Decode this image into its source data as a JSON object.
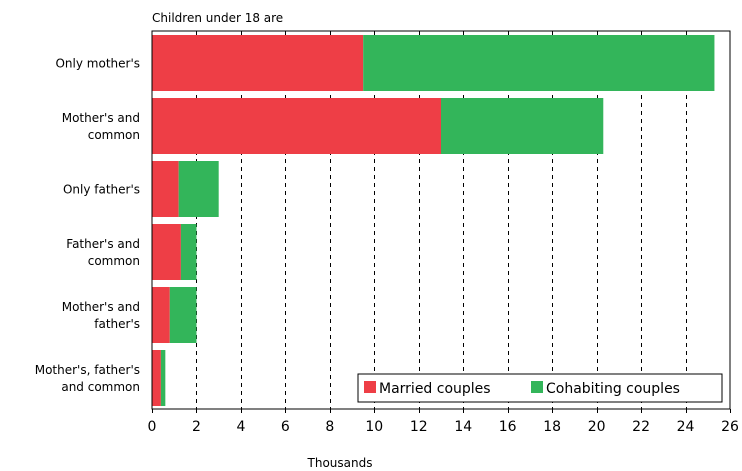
{
  "chart_data": {
    "type": "bar",
    "orientation": "horizontal",
    "stacked": true,
    "title": "Children under 18 are",
    "xlabel": "Thousands",
    "ylabel": "",
    "xlim": [
      0,
      26
    ],
    "xticks": [
      0,
      2,
      4,
      6,
      8,
      10,
      12,
      14,
      16,
      18,
      20,
      22,
      24,
      26
    ],
    "grid": "vertical dashed",
    "legend_position": "bottom-right",
    "categories": [
      [
        "Only mother's"
      ],
      [
        "Mother's and",
        "common"
      ],
      [
        "Only father's"
      ],
      [
        "Father's and",
        "common"
      ],
      [
        "Mother's and",
        "father's"
      ],
      [
        "Mother's, father's",
        "and common"
      ]
    ],
    "series": [
      {
        "name": "Married couples",
        "color": "#ee3e46",
        "values": [
          9.5,
          13.0,
          1.2,
          1.3,
          0.8,
          0.4
        ]
      },
      {
        "name": "Cohabiting couples",
        "color": "#33b55a",
        "values": [
          15.8,
          7.3,
          1.8,
          0.7,
          1.2,
          0.2
        ]
      }
    ]
  }
}
